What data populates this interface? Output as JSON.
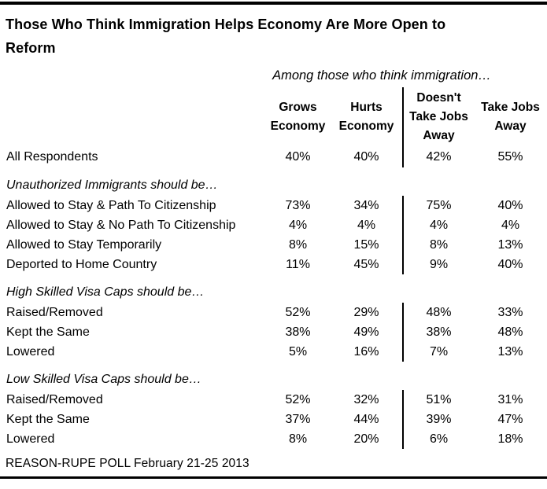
{
  "colors": {
    "text": "#000000",
    "background": "#ffffff",
    "rule": "#000000"
  },
  "chart_data": {
    "type": "table",
    "title": "Those Who Think Immigration Helps Economy Are More Open to Reform",
    "title_lines": [
      "Those Who Think Immigration Helps Economy Are More Open to",
      "Reform"
    ],
    "subtitle": "Among those who think immigration…",
    "source": "REASON-RUPE POLL February 21-25 2013",
    "columns": [
      "Grows Economy",
      "Hurts Economy",
      "Doesn't Take Jobs Away",
      "Take Jobs Away"
    ],
    "all_respondents": {
      "label": "All Respondents",
      "values": [
        "40%",
        "40%",
        "42%",
        "55%"
      ]
    },
    "sections": [
      {
        "heading": "Unauthorized Immigrants should be…",
        "rows": [
          {
            "label": "Allowed to Stay & Path To Citizenship",
            "values": [
              "73%",
              "34%",
              "75%",
              "40%"
            ]
          },
          {
            "label": "Allowed to Stay & No Path To Citizenship",
            "values": [
              "4%",
              "4%",
              "4%",
              "4%"
            ]
          },
          {
            "label": "Allowed to Stay Temporarily",
            "values": [
              "8%",
              "15%",
              "8%",
              "13%"
            ]
          },
          {
            "label": "Deported to Home Country",
            "values": [
              "11%",
              "45%",
              "9%",
              "40%"
            ]
          }
        ]
      },
      {
        "heading": "High Skilled Visa Caps should be…",
        "rows": [
          {
            "label": "Raised/Removed",
            "values": [
              "52%",
              "29%",
              "48%",
              "33%"
            ]
          },
          {
            "label": "Kept the Same",
            "values": [
              "38%",
              "49%",
              "38%",
              "48%"
            ]
          },
          {
            "label": "Lowered",
            "values": [
              "5%",
              "16%",
              "7%",
              "13%"
            ]
          }
        ]
      },
      {
        "heading": "Low Skilled Visa Caps should be…",
        "rows": [
          {
            "label": "Raised/Removed",
            "values": [
              "52%",
              "32%",
              "51%",
              "31%"
            ]
          },
          {
            "label": "Kept the Same",
            "values": [
              "37%",
              "44%",
              "39%",
              "47%"
            ]
          },
          {
            "label": "Lowered",
            "values": [
              "8%",
              "20%",
              "6%",
              "18%"
            ]
          }
        ]
      }
    ]
  }
}
